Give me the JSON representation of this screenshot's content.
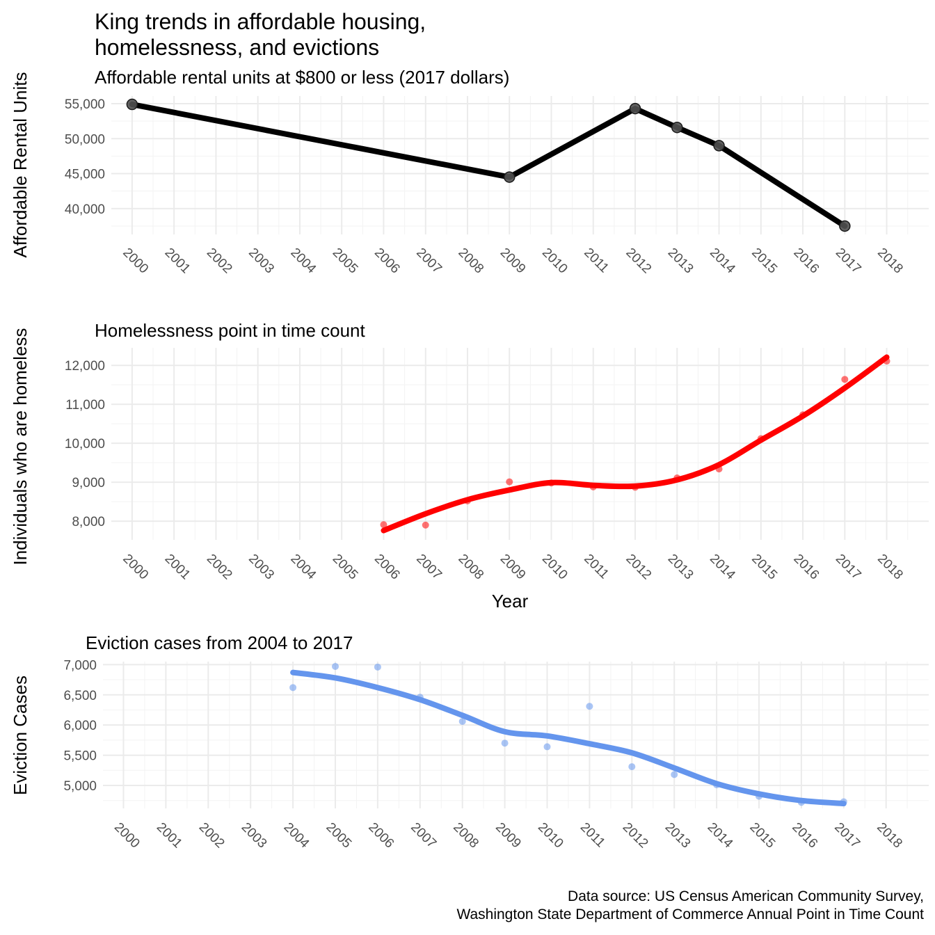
{
  "title_lines": [
    "King trends in affordable housing,",
    "homelessness, and evictions"
  ],
  "caption_lines": [
    "Data source: US Census American Community Survey,",
    "Washington State Department of Commerce Annual Point in Time Count"
  ],
  "chart_data": [
    {
      "type": "line",
      "subtitle": "Affordable rental units at $800 or less (2017 dollars)",
      "ylabel": "Affordable Rental Units",
      "xlabel": "",
      "x_ticks": [
        "2000",
        "2001",
        "2002",
        "2003",
        "2004",
        "2005",
        "2006",
        "2007",
        "2008",
        "2009",
        "2010",
        "2011",
        "2012",
        "2013",
        "2014",
        "2015",
        "2016",
        "2017",
        "2018"
      ],
      "y_ticks": [
        40000,
        45000,
        50000,
        55000
      ],
      "y_tick_labels": [
        "40,000",
        "45,000",
        "50,000",
        "55,000"
      ],
      "ylim": [
        36300,
        56100
      ],
      "grid": true,
      "color": "#000000",
      "series": [
        {
          "x": [
            2000,
            2009,
            2012,
            2013,
            2014,
            2017
          ],
          "y": [
            54900,
            44500,
            54300,
            51600,
            49000,
            37500
          ]
        }
      ],
      "line_style": "connected points"
    },
    {
      "type": "scatter",
      "subtitle": "Homelessness point in time count",
      "ylabel": "Individuals who are homeless",
      "xlabel": "Year",
      "x_ticks": [
        "2000",
        "2001",
        "2002",
        "2003",
        "2004",
        "2005",
        "2006",
        "2007",
        "2008",
        "2009",
        "2010",
        "2011",
        "2012",
        "2013",
        "2014",
        "2015",
        "2016",
        "2017",
        "2018"
      ],
      "y_ticks": [
        8000,
        9000,
        10000,
        11000,
        12000
      ],
      "y_tick_labels": [
        "8,000",
        "9,000",
        "10,000",
        "11,000",
        "12,000"
      ],
      "ylim": [
        7520,
        12450
      ],
      "grid": true,
      "color": "#ff0000",
      "series": [
        {
          "x": [
            2006,
            2007,
            2008,
            2009,
            2010,
            2011,
            2012,
            2013,
            2014,
            2015,
            2016,
            2017,
            2018
          ],
          "y": [
            7910,
            7900,
            8520,
            9010,
            8980,
            8880,
            8870,
            9110,
            9340,
            10120,
            10730,
            11640,
            12110
          ]
        }
      ],
      "smooth_fit": {
        "x": [
          2006,
          2007,
          2008,
          2009,
          2010,
          2011,
          2012,
          2013,
          2014,
          2015,
          2016,
          2017,
          2018
        ],
        "y": [
          7760,
          8190,
          8550,
          8800,
          8990,
          8920,
          8900,
          9060,
          9450,
          10080,
          10700,
          11420,
          12210
        ]
      }
    },
    {
      "type": "scatter",
      "subtitle": "Eviction cases from 2004 to 2017",
      "ylabel": "Eviction Cases",
      "xlabel": "",
      "x_ticks": [
        "2000",
        "2001",
        "2002",
        "2003",
        "2004",
        "2005",
        "2006",
        "2007",
        "2008",
        "2009",
        "2010",
        "2011",
        "2012",
        "2013",
        "2014",
        "2015",
        "2016",
        "2017",
        "2018"
      ],
      "y_ticks": [
        5000,
        5500,
        6000,
        6500,
        7000
      ],
      "y_tick_labels": [
        "5,000",
        "5,500",
        "6,000",
        "6,500",
        "7,000"
      ],
      "ylim": [
        4620,
        7050
      ],
      "grid": true,
      "color": "#6495ed",
      "series": [
        {
          "x": [
            2004,
            2005,
            2006,
            2007,
            2008,
            2009,
            2010,
            2011,
            2012,
            2013,
            2014,
            2015,
            2016,
            2017
          ],
          "y": [
            6620,
            6970,
            6960,
            6460,
            6060,
            5700,
            5640,
            6310,
            5310,
            5180,
            5010,
            4820,
            4720,
            4730
          ]
        }
      ],
      "smooth_fit": {
        "x": [
          2004,
          2005,
          2006,
          2007,
          2008,
          2009,
          2010,
          2011,
          2012,
          2013,
          2014,
          2015,
          2016,
          2017
        ],
        "y": [
          6870,
          6780,
          6620,
          6420,
          6160,
          5890,
          5820,
          5690,
          5540,
          5290,
          5030,
          4860,
          4750,
          4700
        ]
      }
    }
  ]
}
